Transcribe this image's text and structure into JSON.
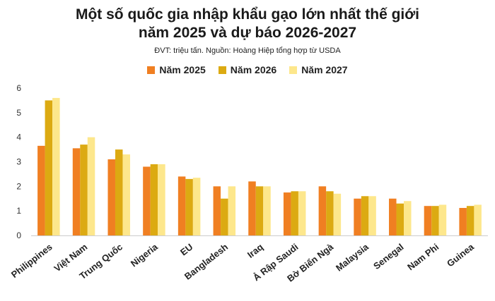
{
  "title_line1": "Một số quốc gia nhập khẩu gạo lớn nhất thế giới",
  "title_line2": "năm 2025 và dự báo 2026-2027",
  "subtitle": "ĐVT: triệu tấn. Nguồn: Hoàng Hiệp tổng hợp từ USDA",
  "colors": [
    "#f07f22",
    "#dcaa12",
    "#fde78c"
  ],
  "chart_data": {
    "type": "bar",
    "categories": [
      "Philippines",
      "Việt Nam",
      "Trung Quốc",
      "Nigeria",
      "EU",
      "Bangladesh",
      "Iraq",
      "Ả Rập Saudi",
      "Bờ Biển Ngà",
      "Malaysia",
      "Senegal",
      "Nam Phi",
      "Guinea"
    ],
    "series": [
      {
        "name": "Năm 2025",
        "values": [
          3.65,
          3.55,
          3.1,
          2.8,
          2.4,
          2.0,
          2.2,
          1.75,
          2.0,
          1.5,
          1.5,
          1.2,
          1.12
        ]
      },
      {
        "name": "Năm 2026",
        "values": [
          5.5,
          3.7,
          3.5,
          2.9,
          2.3,
          1.5,
          2.0,
          1.8,
          1.8,
          1.6,
          1.3,
          1.2,
          1.2
        ]
      },
      {
        "name": "Năm 2027",
        "values": [
          5.6,
          4.0,
          3.3,
          2.9,
          2.35,
          2.0,
          2.0,
          1.8,
          1.7,
          1.6,
          1.4,
          1.25,
          1.25
        ]
      }
    ],
    "yticks": [
      0,
      1,
      2,
      3,
      4,
      5,
      6
    ],
    "ylim": [
      0,
      6
    ],
    "grid": false,
    "legend_position": "top"
  }
}
